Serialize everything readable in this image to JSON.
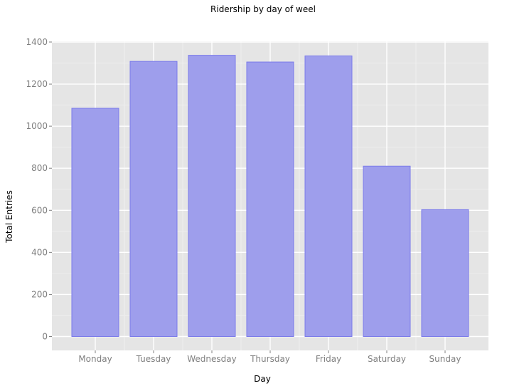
{
  "chart_data": {
    "type": "bar",
    "title": "Ridership by day of weel",
    "xlabel": "Day",
    "ylabel": "Total Entries",
    "categories": [
      "Monday",
      "Tuesday",
      "Wednesday",
      "Thursday",
      "Friday",
      "Saturday",
      "Sunday"
    ],
    "values": [
      1085,
      1308,
      1337,
      1305,
      1334,
      810,
      603
    ],
    "ylim": [
      -70,
      1400
    ],
    "yticks": [
      0,
      200,
      400,
      600,
      800,
      1000,
      1200,
      1400
    ],
    "grid": true,
    "colors": {
      "panel_background": "#e5e5e5",
      "major_grid": "#ffffff",
      "minor_grid": "#f0f0f0",
      "bar_fill": "#9e9eec",
      "bar_stroke": "#7b7bea",
      "tick_label": "#7f7f7f",
      "tick_mark": "#7f7f7f",
      "text": "#000000"
    }
  }
}
